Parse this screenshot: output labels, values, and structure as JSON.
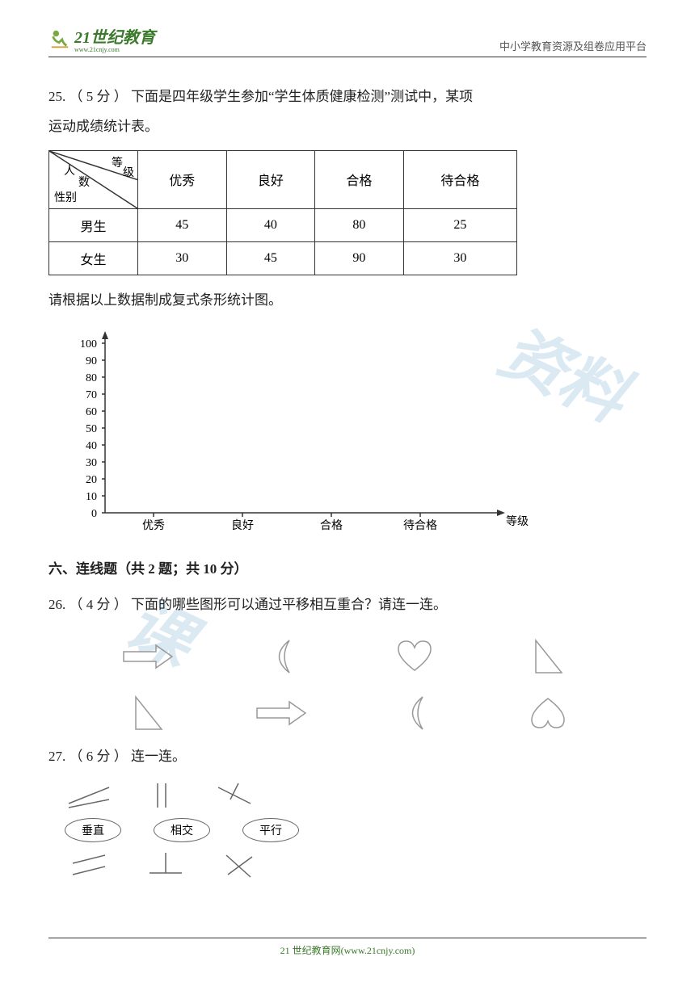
{
  "header": {
    "logo_main": "21世纪教育",
    "logo_sub": "www.21cnjy.com",
    "right_text": "中小学教育资源及组卷应用平台"
  },
  "q25": {
    "number": "25.",
    "points": "（ 5 分 ）",
    "text_line1": "下面是四年级学生参加“学生体质健康检测”测试中，某项",
    "text_line2": "运动成绩统计表。",
    "table": {
      "diag_labels": {
        "top": "等",
        "right": "级",
        "left": "人",
        "mid": "数",
        "bottom": "性别"
      },
      "columns": [
        "优秀",
        "良好",
        "合格",
        "待合格"
      ],
      "rows": [
        {
          "label": "男生",
          "values": [
            "45",
            "40",
            "80",
            "25"
          ]
        },
        {
          "label": "女生",
          "values": [
            "30",
            "45",
            "90",
            "30"
          ]
        }
      ]
    },
    "instruction": "请根据以上数据制成复式条形统计图。",
    "chart": {
      "ylim": [
        0,
        100
      ],
      "ytick_step": 10,
      "yticks": [
        "0",
        "10",
        "20",
        "30",
        "40",
        "50",
        "60",
        "70",
        "80",
        "90",
        "100"
      ],
      "xlabels": [
        "优秀",
        "良好",
        "合格",
        "待合格"
      ],
      "xaxis_label": "等级",
      "axis_color": "#333333",
      "tick_fontsize": 14
    }
  },
  "section6": {
    "title": "六、连线题（共 2 题；共 10 分）"
  },
  "q26": {
    "number": "26.",
    "points": "（ 4 分 ）",
    "text": "下面的哪些图形可以通过平移相互重合？请连一连。",
    "shapes_top": [
      "arrow-right",
      "moon-left",
      "heart-up",
      "triangle-right"
    ],
    "shapes_bottom": [
      "triangle-right",
      "arrow-right",
      "moon-left",
      "heart-down"
    ],
    "stroke_color": "#999999"
  },
  "q27": {
    "number": "27.",
    "points": "（ 6 分 ）",
    "text": "连一连。",
    "top_items": [
      "lines-intersect-acute",
      "lines-parallel-vert",
      "lines-intersect-t"
    ],
    "labels": [
      "垂直",
      "相交",
      "平行"
    ],
    "bottom_items": [
      "lines-parallel-diag",
      "lines-perpendicular",
      "lines-cross"
    ],
    "stroke_color": "#666666"
  },
  "footer": {
    "text": "21 世纪教育网(www.21cnjy.com)"
  },
  "watermark": {
    "text1": "资料",
    "text2": "课"
  }
}
